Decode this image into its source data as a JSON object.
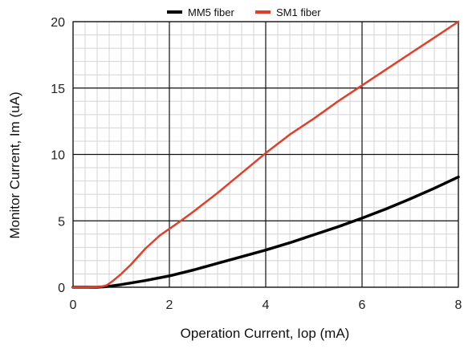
{
  "chart_data": {
    "type": "line",
    "title": "",
    "xlabel": "Operation Current, Iop (mA)",
    "ylabel": "Monitor Current, Im (uA)",
    "xlim": [
      0,
      8
    ],
    "ylim": [
      0,
      20
    ],
    "xticks": [
      "0",
      "2",
      "4",
      "6",
      "8"
    ],
    "yticks": [
      "0",
      "5",
      "10",
      "15",
      "20"
    ],
    "grid": true,
    "legend_position": "top-center",
    "series": [
      {
        "name": "MM5 fiber",
        "color": "#000000",
        "x": [
          0,
          0.5,
          0.7,
          1.0,
          1.5,
          2.0,
          2.5,
          3.0,
          3.5,
          4.0,
          4.5,
          5.0,
          5.5,
          6.0,
          6.5,
          7.0,
          7.5,
          8.0
        ],
        "y": [
          0,
          0,
          0.05,
          0.2,
          0.5,
          0.85,
          1.3,
          1.8,
          2.3,
          2.8,
          3.35,
          3.95,
          4.55,
          5.2,
          5.9,
          6.65,
          7.45,
          8.3
        ]
      },
      {
        "name": "SM1 fiber",
        "color": "#e0402a",
        "x": [
          0,
          0.3,
          0.5,
          0.6,
          0.7,
          0.8,
          1.0,
          1.2,
          1.5,
          1.8,
          2.0,
          2.2,
          2.5,
          3.0,
          3.5,
          4.0,
          4.5,
          5.0,
          5.5,
          6.0,
          6.5,
          7.0,
          7.5,
          8.0
        ],
        "y": [
          0,
          0,
          0.02,
          0.05,
          0.15,
          0.4,
          1.0,
          1.7,
          2.9,
          3.9,
          4.4,
          4.9,
          5.7,
          7.1,
          8.6,
          10.1,
          11.5,
          12.7,
          14.0,
          15.2,
          16.4,
          17.6,
          18.8,
          20.0
        ]
      }
    ]
  }
}
